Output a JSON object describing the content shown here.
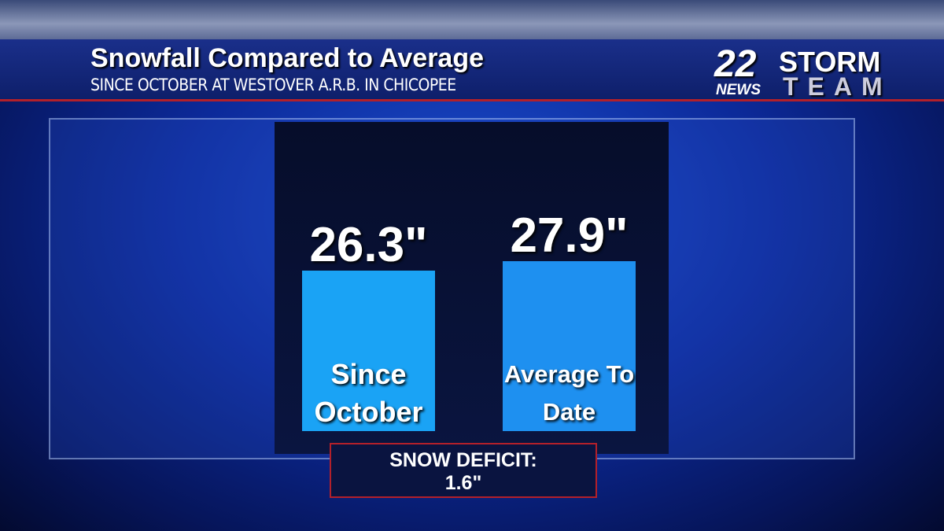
{
  "header": {
    "title": "Snowfall Compared to Average",
    "subtitle": "SINCE OCTOBER AT WESTOVER A.R.B. IN CHICOPEE",
    "logo": {
      "number": "22",
      "news": "NEWS",
      "storm": "STORM",
      "team": "TEAM"
    }
  },
  "chart_data": {
    "type": "bar",
    "categories": [
      "Since October",
      "Average To Date"
    ],
    "values": [
      26.3,
      27.9
    ],
    "value_labels": [
      "26.3\"",
      "27.9\""
    ],
    "colors": [
      "#1aa3f5",
      "#1e90f0"
    ],
    "annotation": {
      "label": "SNOW DEFICIT:",
      "value": "1.6\""
    }
  }
}
